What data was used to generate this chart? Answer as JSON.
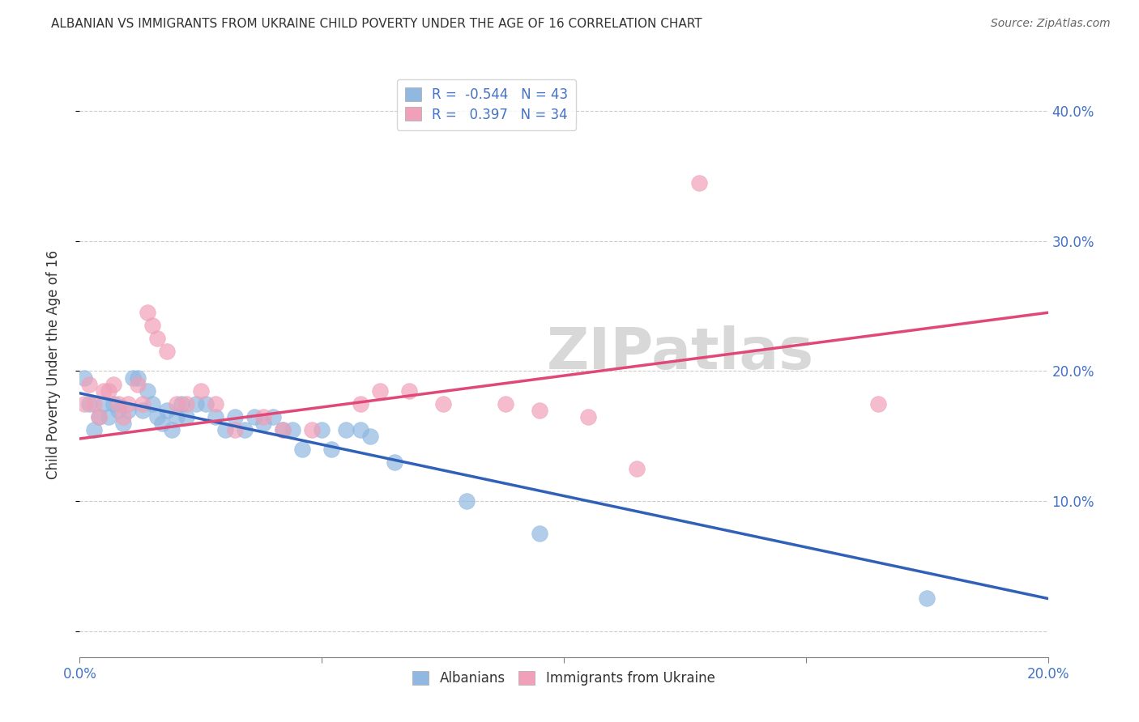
{
  "title": "ALBANIAN VS IMMIGRANTS FROM UKRAINE CHILD POVERTY UNDER THE AGE OF 16 CORRELATION CHART",
  "source": "Source: ZipAtlas.com",
  "ylabel": "Child Poverty Under the Age of 16",
  "legend_entries": [
    {
      "label": "R =  -0.544   N = 43",
      "color": "#a8c8e8"
    },
    {
      "label": "R =   0.397   N = 34",
      "color": "#f4a8b8"
    }
  ],
  "albanian_scatter": [
    [
      0.001,
      0.195
    ],
    [
      0.002,
      0.175
    ],
    [
      0.003,
      0.155
    ],
    [
      0.004,
      0.165
    ],
    [
      0.005,
      0.175
    ],
    [
      0.006,
      0.165
    ],
    [
      0.007,
      0.175
    ],
    [
      0.008,
      0.17
    ],
    [
      0.009,
      0.16
    ],
    [
      0.01,
      0.17
    ],
    [
      0.011,
      0.195
    ],
    [
      0.012,
      0.195
    ],
    [
      0.013,
      0.17
    ],
    [
      0.014,
      0.185
    ],
    [
      0.015,
      0.175
    ],
    [
      0.016,
      0.165
    ],
    [
      0.017,
      0.16
    ],
    [
      0.018,
      0.17
    ],
    [
      0.019,
      0.155
    ],
    [
      0.02,
      0.165
    ],
    [
      0.021,
      0.175
    ],
    [
      0.022,
      0.165
    ],
    [
      0.024,
      0.175
    ],
    [
      0.026,
      0.175
    ],
    [
      0.028,
      0.165
    ],
    [
      0.03,
      0.155
    ],
    [
      0.032,
      0.165
    ],
    [
      0.034,
      0.155
    ],
    [
      0.036,
      0.165
    ],
    [
      0.038,
      0.16
    ],
    [
      0.04,
      0.165
    ],
    [
      0.042,
      0.155
    ],
    [
      0.044,
      0.155
    ],
    [
      0.046,
      0.14
    ],
    [
      0.05,
      0.155
    ],
    [
      0.052,
      0.14
    ],
    [
      0.055,
      0.155
    ],
    [
      0.058,
      0.155
    ],
    [
      0.06,
      0.15
    ],
    [
      0.065,
      0.13
    ],
    [
      0.08,
      0.1
    ],
    [
      0.095,
      0.075
    ],
    [
      0.175,
      0.025
    ]
  ],
  "ukraine_scatter": [
    [
      0.001,
      0.175
    ],
    [
      0.002,
      0.19
    ],
    [
      0.003,
      0.175
    ],
    [
      0.004,
      0.165
    ],
    [
      0.005,
      0.185
    ],
    [
      0.006,
      0.185
    ],
    [
      0.007,
      0.19
    ],
    [
      0.008,
      0.175
    ],
    [
      0.009,
      0.165
    ],
    [
      0.01,
      0.175
    ],
    [
      0.012,
      0.19
    ],
    [
      0.013,
      0.175
    ],
    [
      0.014,
      0.245
    ],
    [
      0.015,
      0.235
    ],
    [
      0.016,
      0.225
    ],
    [
      0.018,
      0.215
    ],
    [
      0.02,
      0.175
    ],
    [
      0.022,
      0.175
    ],
    [
      0.025,
      0.185
    ],
    [
      0.028,
      0.175
    ],
    [
      0.032,
      0.155
    ],
    [
      0.038,
      0.165
    ],
    [
      0.042,
      0.155
    ],
    [
      0.048,
      0.155
    ],
    [
      0.058,
      0.175
    ],
    [
      0.062,
      0.185
    ],
    [
      0.068,
      0.185
    ],
    [
      0.075,
      0.175
    ],
    [
      0.088,
      0.175
    ],
    [
      0.095,
      0.17
    ],
    [
      0.105,
      0.165
    ],
    [
      0.115,
      0.125
    ],
    [
      0.128,
      0.345
    ],
    [
      0.165,
      0.175
    ]
  ],
  "albanian_line": {
    "x": [
      0.0,
      0.2
    ],
    "y": [
      0.183,
      0.025
    ]
  },
  "ukraine_line": {
    "x": [
      0.0,
      0.2
    ],
    "y": [
      0.148,
      0.245
    ]
  },
  "xlim": [
    0.0,
    0.2
  ],
  "ylim": [
    -0.02,
    0.43
  ],
  "x_tick_positions": [
    0.0,
    0.05,
    0.1,
    0.15,
    0.2
  ],
  "x_tick_labels": [
    "0.0%",
    "",
    "",
    "",
    "20.0%"
  ],
  "y_tick_positions": [
    0.0,
    0.1,
    0.2,
    0.3,
    0.4
  ],
  "y_tick_labels": [
    "",
    "10.0%",
    "20.0%",
    "30.0%",
    "40.0%"
  ],
  "albanian_color": "#90b8e0",
  "ukraine_color": "#f0a0b8",
  "albanian_line_color": "#3060b8",
  "ukraine_line_color": "#e04878",
  "background_color": "#ffffff",
  "grid_color": "#cccccc",
  "watermark_text": "ZIPatlas",
  "watermark_color": "#d8d8d8",
  "title_fontsize": 11,
  "source_fontsize": 10,
  "tick_fontsize": 12,
  "ylabel_fontsize": 12,
  "legend_fontsize": 12,
  "dot_size": 200
}
